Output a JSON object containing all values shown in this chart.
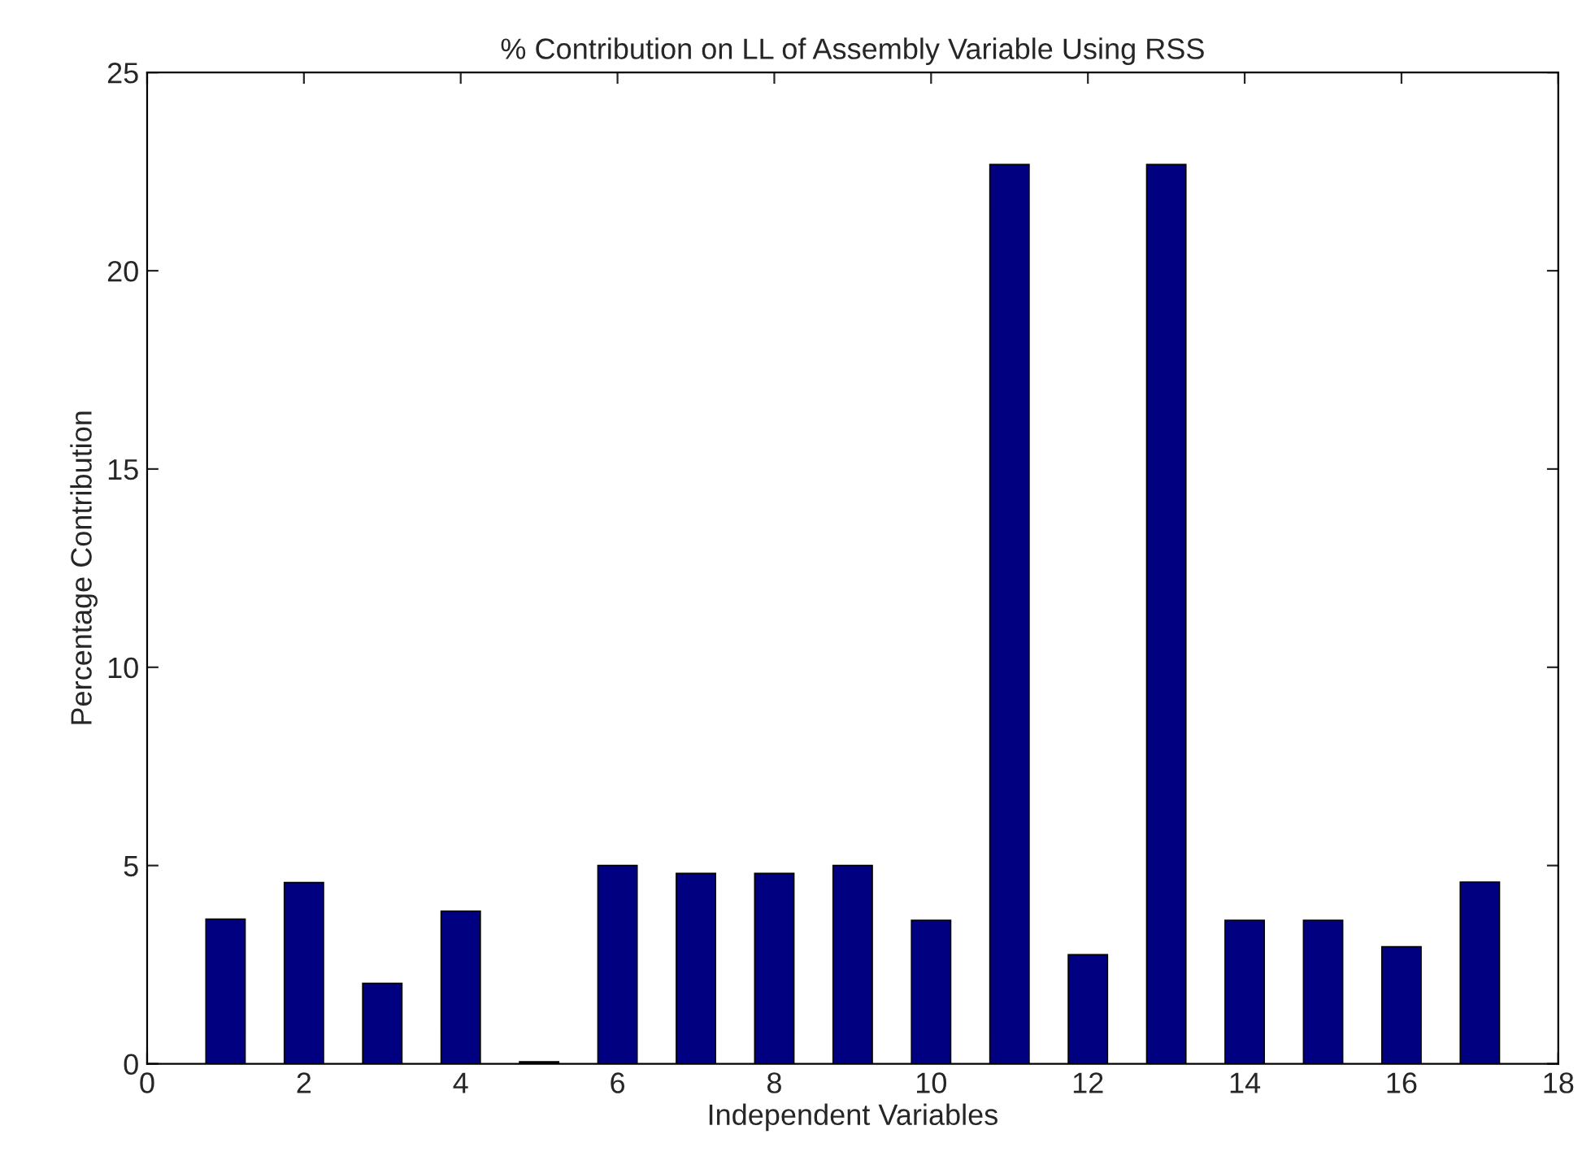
{
  "chart_data": {
    "type": "bar",
    "title": "% Contribution on LL of Assembly Variable Using RSS",
    "xlabel": "Independent Variables",
    "ylabel": "Percentage Contribution",
    "x": [
      1,
      2,
      3,
      4,
      5,
      6,
      7,
      8,
      9,
      10,
      11,
      12,
      13,
      14,
      15,
      16,
      17
    ],
    "values": [
      3.65,
      4.57,
      2.03,
      3.85,
      0.05,
      5.0,
      4.8,
      4.8,
      5.0,
      3.62,
      22.68,
      2.75,
      22.68,
      3.62,
      3.62,
      2.95,
      4.58
    ],
    "color": "#000080",
    "xlim": [
      0,
      18
    ],
    "xticks": [
      0,
      2,
      4,
      6,
      8,
      10,
      12,
      14,
      16,
      18
    ],
    "ylim": [
      0,
      25
    ],
    "yticks": [
      0,
      5,
      10,
      15,
      20,
      25
    ],
    "grid": false
  }
}
